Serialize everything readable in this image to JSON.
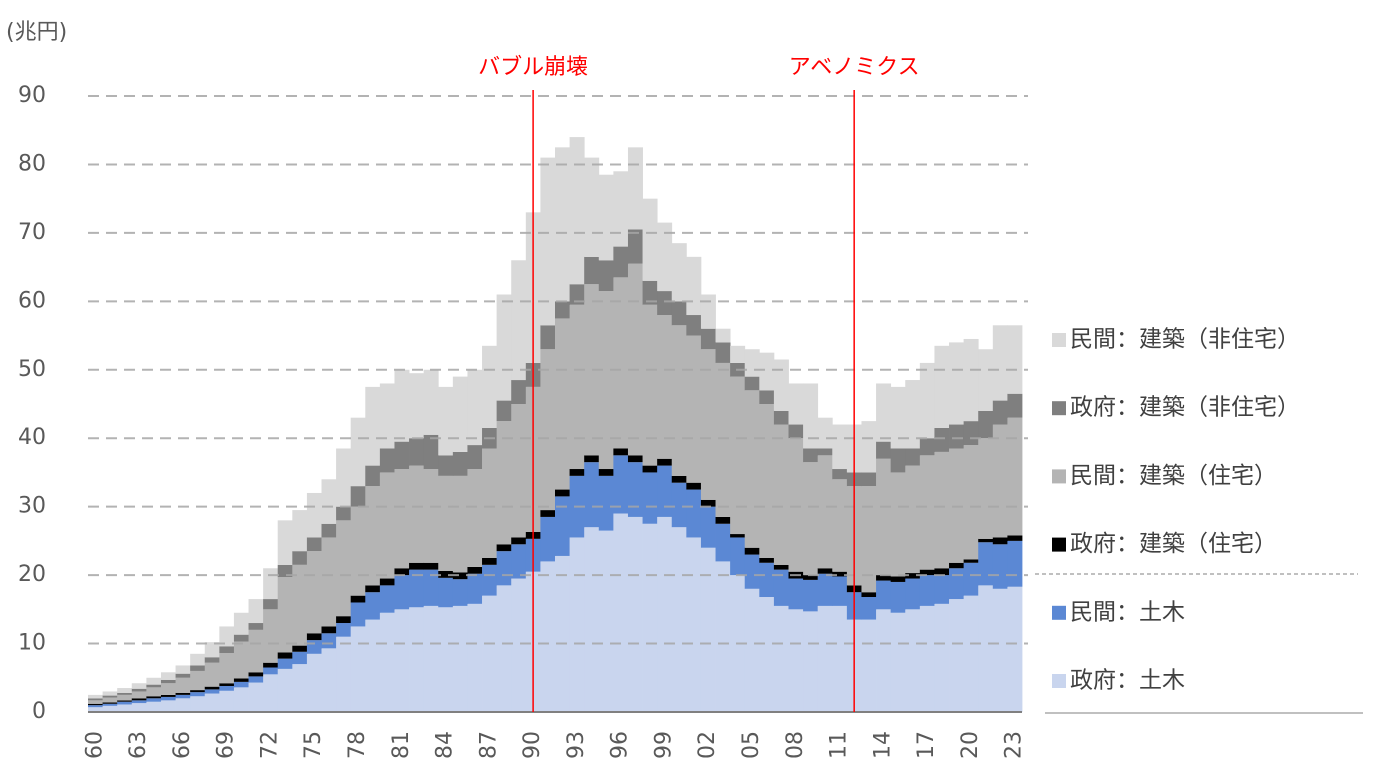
{
  "chart_data": {
    "type": "stacked_bar",
    "y_unit_label": "(兆円)",
    "categories": [
      "60",
      null,
      null,
      "63",
      null,
      null,
      "66",
      null,
      null,
      "69",
      null,
      null,
      "72",
      null,
      null,
      "75",
      null,
      null,
      "78",
      null,
      null,
      "81",
      null,
      null,
      "84",
      null,
      null,
      "87",
      null,
      null,
      "90",
      null,
      null,
      "93",
      null,
      null,
      "96",
      null,
      null,
      "99",
      null,
      null,
      "02",
      null,
      null,
      "05",
      null,
      null,
      "08",
      null,
      null,
      "11",
      null,
      null,
      "14",
      null,
      null,
      "17",
      null,
      null,
      "20",
      null,
      null,
      "23"
    ],
    "series": [
      {
        "name": "政府：土木",
        "color": "#c9d5ee",
        "values": [
          0.7,
          0.9,
          1.1,
          1.3,
          1.5,
          1.7,
          2.0,
          2.3,
          2.7,
          3.1,
          3.6,
          4.3,
          5.5,
          6.3,
          7.0,
          8.5,
          9.3,
          11.0,
          12.5,
          13.5,
          14.5,
          15.0,
          15.3,
          15.5,
          15.3,
          15.5,
          15.8,
          17.0,
          18.5,
          19.5,
          20.5,
          22.0,
          22.8,
          25.5,
          27.0,
          26.5,
          29.0,
          28.5,
          27.5,
          28.5,
          27.0,
          25.5,
          24.0,
          22.0,
          20.0,
          18.0,
          16.8,
          15.5,
          15.0,
          14.7,
          15.5,
          15.5,
          13.5,
          13.5,
          15.0,
          14.5,
          15.0,
          15.5,
          15.8,
          16.5,
          17.0,
          18.5,
          18.0,
          18.3
        ]
      },
      {
        "name": "民間：土木",
        "color": "#5b88d4",
        "values": [
          0.3,
          0.3,
          0.4,
          0.4,
          0.5,
          0.5,
          0.5,
          0.6,
          0.6,
          0.7,
          0.8,
          0.9,
          1.0,
          1.5,
          1.8,
          2.0,
          2.2,
          2.0,
          3.5,
          4.0,
          4.0,
          5.0,
          5.5,
          5.3,
          4.3,
          3.9,
          4.4,
          4.5,
          5.0,
          5.0,
          4.8,
          6.5,
          8.7,
          9.0,
          9.5,
          8.0,
          8.5,
          8.0,
          7.5,
          7.5,
          6.5,
          7.0,
          6.0,
          5.5,
          5.5,
          5.0,
          5.0,
          5.3,
          4.5,
          4.6,
          4.7,
          4.3,
          4.0,
          3.3,
          4.2,
          4.5,
          4.5,
          4.5,
          4.2,
          4.5,
          4.8,
          6.3,
          6.5,
          6.7
        ]
      },
      {
        "name": "政府：建築（住宅）",
        "color": "#000000",
        "values": [
          0.2,
          0.2,
          0.2,
          0.3,
          0.3,
          0.3,
          0.3,
          0.3,
          0.4,
          0.4,
          0.5,
          0.6,
          0.7,
          0.9,
          0.9,
          1.0,
          1.0,
          1.0,
          1.0,
          1.0,
          1.0,
          1.0,
          1.0,
          1.0,
          1.0,
          1.0,
          1.0,
          1.0,
          1.0,
          1.0,
          1.0,
          1.0,
          1.0,
          1.0,
          1.0,
          1.0,
          1.0,
          1.0,
          1.0,
          1.0,
          1.0,
          1.0,
          1.0,
          1.0,
          0.5,
          1.0,
          0.7,
          0.7,
          1.0,
          0.7,
          0.8,
          0.7,
          1.0,
          0.7,
          0.8,
          0.8,
          0.8,
          0.8,
          1.0,
          0.8,
          0.5,
          0.5,
          1.0,
          0.8
        ]
      },
      {
        "name": "民間：建築（住宅）",
        "color": "#b4b4b4",
        "values": [
          0.5,
          0.7,
          0.8,
          1.0,
          1.3,
          1.7,
          2.2,
          2.8,
          3.5,
          4.4,
          5.4,
          6.2,
          7.8,
          11.0,
          11.8,
          12.0,
          13.0,
          14.0,
          13.0,
          14.5,
          15.5,
          14.5,
          14.2,
          13.7,
          13.9,
          14.1,
          14.3,
          16.0,
          18.0,
          19.5,
          21.2,
          23.5,
          25.0,
          24.0,
          25.0,
          26.0,
          25.0,
          28.0,
          23.5,
          21.0,
          22.0,
          21.5,
          22.0,
          22.5,
          23.0,
          23.0,
          22.5,
          20.5,
          19.5,
          16.5,
          16.5,
          13.5,
          14.5,
          15.5,
          17.0,
          15.2,
          15.7,
          16.7,
          17.0,
          16.7,
          16.7,
          14.7,
          16.5,
          17.2
        ]
      },
      {
        "name": "政府：建築（非住宅）",
        "color": "#7f7f7f",
        "values": [
          0.3,
          0.3,
          0.3,
          0.4,
          0.4,
          0.5,
          0.6,
          0.8,
          0.8,
          1.0,
          1.0,
          1.0,
          1.5,
          1.8,
          2.0,
          2.0,
          2.0,
          2.0,
          3.0,
          3.0,
          3.5,
          4.0,
          4.0,
          5.0,
          3.0,
          3.5,
          3.5,
          3.0,
          3.0,
          3.5,
          3.5,
          3.5,
          2.5,
          3.0,
          4.0,
          4.5,
          4.5,
          5.0,
          3.5,
          3.5,
          3.5,
          3.0,
          3.0,
          3.0,
          2.0,
          2.0,
          2.0,
          2.0,
          2.0,
          2.0,
          1.0,
          1.5,
          2.0,
          2.0,
          2.5,
          3.5,
          2.5,
          2.5,
          3.5,
          3.5,
          3.5,
          4.0,
          3.5,
          3.5
        ]
      },
      {
        "name": "民間：建築（非住宅）",
        "color": "#d9d9d9",
        "values": [
          0.5,
          0.6,
          0.7,
          0.8,
          1.0,
          1.1,
          1.2,
          1.7,
          2.2,
          2.9,
          3.2,
          3.5,
          4.5,
          6.5,
          6.0,
          6.5,
          6.5,
          8.5,
          10.0,
          11.5,
          9.5,
          10.5,
          9.5,
          9.5,
          10.0,
          11.0,
          11.0,
          12.0,
          15.5,
          17.5,
          22.0,
          24.5,
          22.5,
          21.5,
          14.5,
          12.5,
          11.0,
          12.0,
          12.0,
          10.0,
          8.5,
          8.5,
          5.0,
          2.0,
          2.5,
          4.0,
          5.5,
          7.5,
          6.0,
          9.5,
          4.5,
          6.5,
          7.0,
          7.5,
          8.5,
          9.0,
          10.0,
          11.0,
          12.0,
          12.0,
          12.0,
          9.0,
          11.0,
          10.0
        ]
      }
    ],
    "ylim": [
      0,
      90
    ],
    "yticks": [
      0,
      10,
      20,
      30,
      40,
      50,
      60,
      70,
      80,
      90
    ],
    "grid": true,
    "annotations": [
      {
        "text": "バブル崩壊",
        "category_index": 30,
        "color": "#ff0000"
      },
      {
        "text": "アベノミクス",
        "category_index": 52,
        "color": "#ff0000"
      }
    ]
  }
}
